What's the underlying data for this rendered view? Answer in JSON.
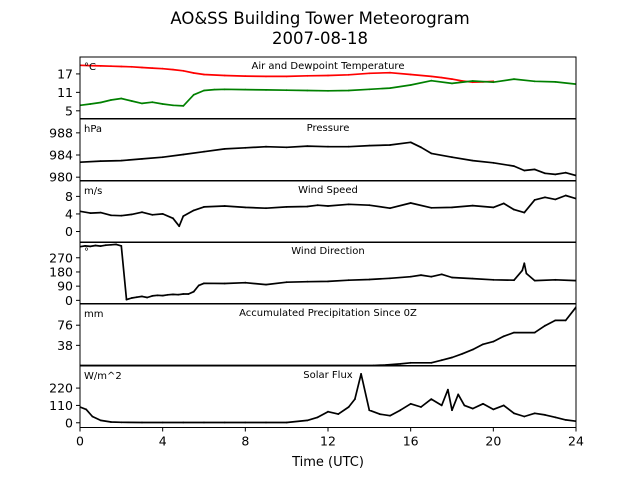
{
  "chart_data": {
    "type": "line",
    "title": "AO&SS Building Tower Meteorogram",
    "subtitle": "2007-08-18",
    "xlabel": "Time (UTC)",
    "xlim": [
      0,
      24
    ],
    "xticks": [
      "0",
      "4",
      "8",
      "12",
      "16",
      "20",
      "24"
    ],
    "panels": [
      {
        "name": "Air and Dewpoint Temperature",
        "unit": "°C",
        "ylim": [
          2.5,
          22.5
        ],
        "yticks": [
          "5",
          "11",
          "17"
        ],
        "series": [
          {
            "color": "#ff0000",
            "x": [
              0,
              0.5,
              1,
              1.5,
              2,
              2.5,
              3,
              3.5,
              4,
              4.5,
              5,
              5.5,
              6,
              7,
              8,
              9,
              10,
              11,
              12,
              13,
              14,
              15,
              16,
              17,
              17.5,
              18,
              18.5,
              19,
              19.5,
              20
            ],
            "y": [
              19.8,
              19.7,
              19.6,
              19.5,
              19.4,
              19.3,
              19.1,
              18.9,
              18.7,
              18.4,
              18.0,
              17.3,
              16.8,
              16.5,
              16.3,
              16.2,
              16.2,
              16.4,
              16.5,
              16.7,
              17.2,
              17.4,
              16.8,
              16.2,
              15.8,
              15.3,
              14.7,
              14.3,
              14.4,
              14.6
            ]
          },
          {
            "color": "#008000",
            "x": [
              0,
              0.5,
              1,
              1.5,
              2,
              2.5,
              3,
              3.5,
              4,
              4.5,
              5,
              5.5,
              6,
              6.5,
              7,
              8,
              9,
              10,
              11,
              12,
              13,
              14,
              15,
              16,
              17,
              18,
              19,
              20,
              21,
              22,
              23,
              24
            ],
            "y": [
              6.8,
              7.2,
              7.7,
              8.5,
              9.0,
              8.2,
              7.4,
              7.8,
              7.2,
              6.8,
              6.6,
              10.2,
              11.6,
              11.9,
              12.0,
              11.9,
              11.8,
              11.7,
              11.6,
              11.5,
              11.6,
              12.0,
              12.4,
              13.4,
              14.8,
              13.9,
              14.7,
              14.3,
              15.3,
              14.6,
              14.4,
              13.7
            ]
          }
        ]
      },
      {
        "name": "Pressure",
        "unit": "hPa",
        "ylim": [
          979.4,
          990.5
        ],
        "yticks": [
          "980",
          "984",
          "988"
        ],
        "series": [
          {
            "color": "#000000",
            "x": [
              0,
              1,
              2,
              3,
              4,
              5,
              6,
              7,
              8,
              9,
              10,
              11,
              12,
              13,
              14,
              15,
              16,
              16.5,
              17,
              18,
              19,
              20,
              21,
              21.5,
              22,
              22.5,
              23,
              23.5,
              24
            ],
            "y": [
              982.7,
              982.9,
              983.0,
              983.3,
              983.6,
              984.1,
              984.6,
              985.1,
              985.3,
              985.5,
              985.4,
              985.6,
              985.5,
              985.5,
              985.7,
              985.8,
              986.3,
              985.4,
              984.3,
              983.6,
              983.0,
              982.6,
              982.0,
              981.2,
              981.4,
              980.7,
              980.5,
              980.8,
              980.3
            ]
          }
        ]
      },
      {
        "name": "Wind Speed",
        "unit": "m/s",
        "ylim": [
          -2.5,
          11.5
        ],
        "yticks": [
          "0",
          "4",
          "8"
        ],
        "series": [
          {
            "color": "#000000",
            "x": [
              0,
              0.5,
              1,
              1.5,
              2,
              2.5,
              3,
              3.5,
              4,
              4.5,
              4.8,
              5,
              5.5,
              6,
              7,
              8,
              9,
              10,
              11,
              11.5,
              12,
              13,
              14,
              15,
              16,
              17,
              18,
              19,
              20,
              20.5,
              21,
              21.5,
              22,
              22.5,
              23,
              23.5,
              24
            ],
            "y": [
              4.6,
              4.2,
              4.3,
              3.7,
              3.6,
              3.9,
              4.4,
              3.8,
              4.0,
              3.0,
              1.2,
              3.5,
              4.8,
              5.6,
              5.8,
              5.5,
              5.3,
              5.6,
              5.7,
              6.0,
              5.8,
              6.2,
              6.0,
              5.3,
              6.5,
              5.4,
              5.5,
              5.9,
              5.5,
              6.4,
              5.0,
              4.3,
              7.2,
              7.8,
              7.3,
              8.2,
              7.5
            ]
          }
        ]
      },
      {
        "name": "Wind Direction",
        "unit": "°",
        "ylim": [
          -20,
          370
        ],
        "yticks": [
          "0",
          "90",
          "180",
          "270"
        ],
        "series": [
          {
            "color": "#000000",
            "x": [
              0,
              0.25,
              0.5,
              0.75,
              1,
              1.25,
              1.5,
              1.75,
              2,
              2.25,
              2.5,
              2.75,
              3,
              3.25,
              3.5,
              3.75,
              4,
              4.25,
              4.5,
              4.75,
              5,
              5.25,
              5.5,
              5.75,
              6,
              7,
              8,
              9,
              10,
              11,
              12,
              13,
              14,
              15,
              16,
              16.5,
              17,
              17.5,
              18,
              19,
              20,
              21,
              21.4,
              21.5,
              21.6,
              22,
              23,
              24
            ],
            "y": [
              340,
              345,
              342,
              348,
              344,
              350,
              352,
              355,
              345,
              5,
              15,
              20,
              25,
              18,
              28,
              32,
              30,
              35,
              38,
              36,
              40,
              40,
              55,
              95,
              108,
              107,
              112,
              100,
              115,
              118,
              120,
              128,
              132,
              140,
              150,
              160,
              150,
              165,
              145,
              138,
              130,
              128,
              190,
              235,
              170,
              125,
              130,
              125
            ]
          }
        ]
      },
      {
        "name": "Accumulated Precipitation Since 0Z",
        "unit": "mm",
        "ylim": [
          0,
          116
        ],
        "yticks": [
          "38",
          "76"
        ],
        "series": [
          {
            "color": "#000000",
            "x": [
              0,
              14.2,
              14.8,
              15.5,
              16,
              17,
              17.5,
              18,
              18.5,
              19,
              19.5,
              20,
              20.5,
              21,
              22,
              22.5,
              23,
              23.5,
              24
            ],
            "y": [
              0,
              0,
              1,
              3,
              5,
              5,
              10,
              15,
              22,
              30,
              40,
              45,
              55,
              62,
              62,
              75,
              85,
              85,
              110
            ]
          }
        ]
      },
      {
        "name": "Solar Flux",
        "unit": "W/m^2",
        "ylim": [
          -30,
          360
        ],
        "yticks": [
          "0",
          "110",
          "220"
        ],
        "series": [
          {
            "color": "#000000",
            "x": [
              0,
              0.3,
              0.6,
              1,
              1.5,
              2,
              3,
              4,
              5,
              6,
              7,
              8,
              9,
              10,
              11,
              11.5,
              12,
              12.5,
              13,
              13.3,
              13.6,
              14,
              14.5,
              15,
              15.5,
              16,
              16.5,
              17,
              17.5,
              17.8,
              18,
              18.3,
              18.6,
              19,
              19.5,
              20,
              20.5,
              21,
              21.5,
              22,
              22.5,
              23,
              23.5,
              24
            ],
            "y": [
              100,
              85,
              40,
              15,
              5,
              3,
              2,
              2,
              2,
              2,
              2,
              2,
              2,
              2,
              15,
              35,
              70,
              55,
              100,
              150,
              310,
              80,
              55,
              45,
              80,
              120,
              100,
              150,
              110,
              210,
              80,
              180,
              110,
              90,
              120,
              85,
              110,
              60,
              40,
              60,
              50,
              35,
              18,
              10
            ]
          }
        ]
      }
    ]
  }
}
